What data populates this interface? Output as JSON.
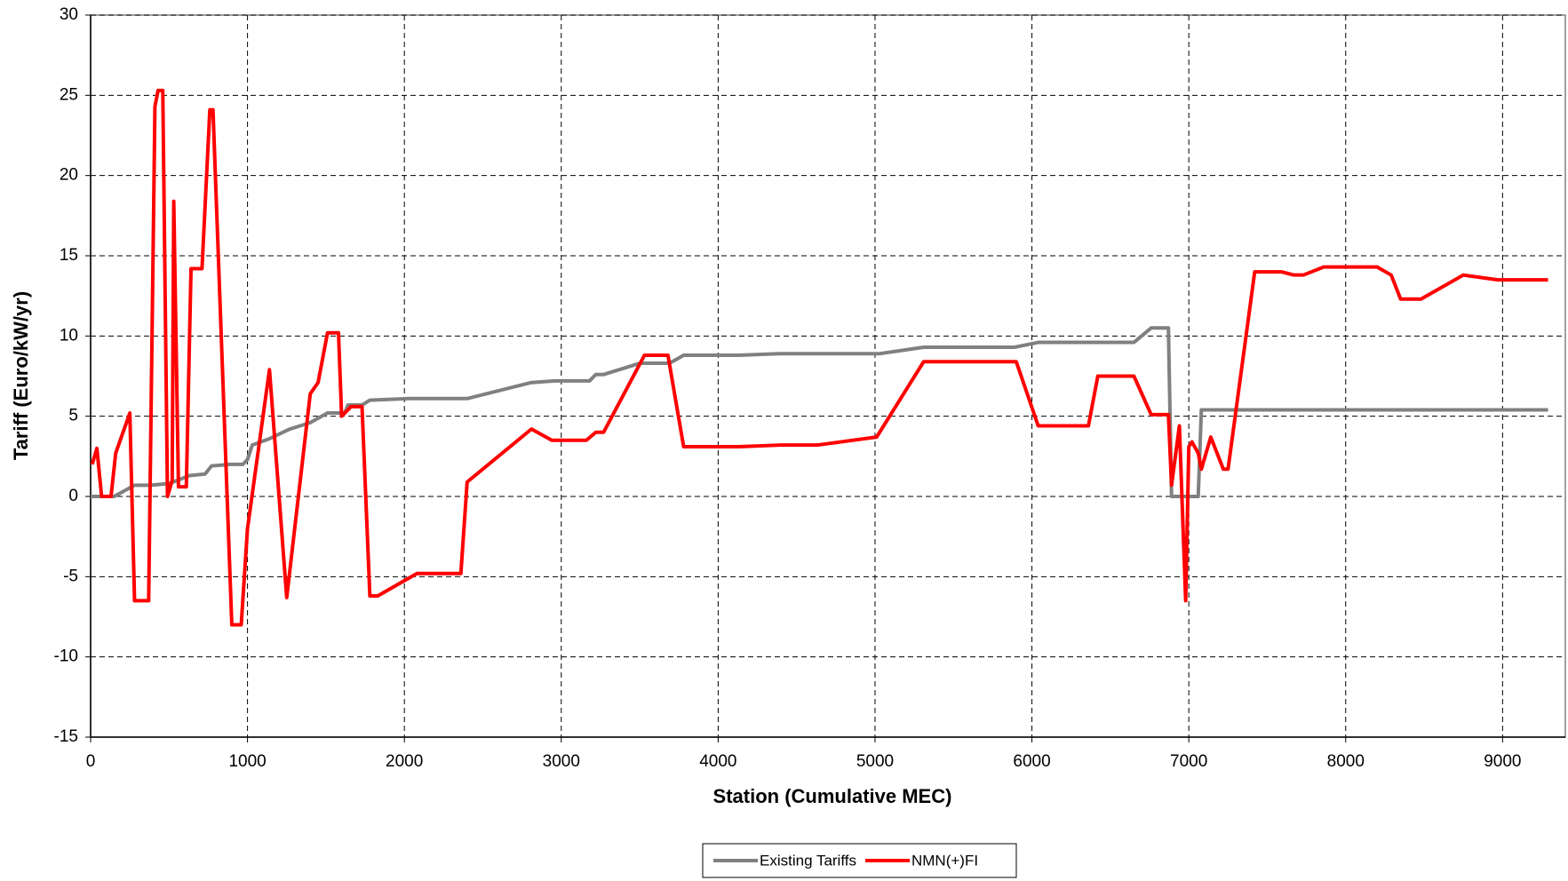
{
  "chart_data": {
    "type": "line",
    "x_label": "Station (Cumulative MEC)",
    "y_label": "Tariff (Euro/kW/yr)",
    "xlim": [
      0,
      9400
    ],
    "ylim": [
      -15,
      30
    ],
    "xticks": [
      0,
      1000,
      2000,
      3000,
      4000,
      5000,
      6000,
      7000,
      8000,
      9000
    ],
    "yticks": [
      -15,
      -10,
      -5,
      0,
      5,
      10,
      15,
      20,
      25,
      30
    ],
    "grid": true,
    "legend": "bottom",
    "series": [
      {
        "name": "Existing Tariffs",
        "color": "#808080",
        "x": [
          0,
          150,
          280,
          380,
          500,
          630,
          730,
          770,
          890,
          970,
          1000,
          1030,
          1140,
          1270,
          1400,
          1510,
          1620,
          1640,
          1730,
          1780,
          2030,
          2400,
          2810,
          2960,
          3180,
          3220,
          3270,
          3500,
          3690,
          3780,
          4130,
          4390,
          5030,
          5310,
          5890,
          6040,
          6650,
          6760,
          6870,
          6890,
          7060,
          7080,
          9290
        ],
        "values": [
          0,
          0,
          0.7,
          0.7,
          0.8,
          1.3,
          1.4,
          1.9,
          2.0,
          2.0,
          2.3,
          3.2,
          3.6,
          4.2,
          4.6,
          5.2,
          5.2,
          5.7,
          5.7,
          6.0,
          6.1,
          6.1,
          7.1,
          7.2,
          7.2,
          7.6,
          7.6,
          8.3,
          8.3,
          8.8,
          8.8,
          8.9,
          8.9,
          9.3,
          9.3,
          9.6,
          9.6,
          10.5,
          10.5,
          0,
          0,
          5.4,
          5.4
        ]
      },
      {
        "name": "NMN(+)FI",
        "color": "#ff0000",
        "x": [
          10,
          40,
          70,
          130,
          160,
          250,
          280,
          370,
          410,
          430,
          460,
          490,
          520,
          530,
          560,
          610,
          640,
          710,
          760,
          780,
          900,
          960,
          1000,
          1140,
          1250,
          1400,
          1450,
          1510,
          1580,
          1600,
          1660,
          1730,
          1780,
          1830,
          2080,
          2360,
          2400,
          2810,
          2940,
          3160,
          3220,
          3270,
          3530,
          3680,
          3780,
          4130,
          4390,
          4630,
          5010,
          5310,
          5900,
          6040,
          6360,
          6420,
          6650,
          6760,
          6870,
          6890,
          6940,
          6980,
          7000,
          7020,
          7060,
          7080,
          7140,
          7220,
          7250,
          7420,
          7590,
          7670,
          7730,
          7860,
          8200,
          8290,
          8350,
          8480,
          8750,
          8970,
          9290
        ],
        "values": [
          2.0,
          3.0,
          0,
          0,
          2.7,
          5.2,
          -6.5,
          -6.5,
          24.3,
          25.3,
          25.3,
          0,
          1.0,
          18.4,
          0.6,
          0.6,
          14.2,
          14.2,
          24.1,
          24.1,
          -8.0,
          -8.0,
          -2.0,
          7.9,
          -6.3,
          6.4,
          7.1,
          10.2,
          10.2,
          5.0,
          5.6,
          5.6,
          -6.2,
          -6.2,
          -4.8,
          -4.8,
          0.9,
          4.2,
          3.5,
          3.5,
          4.0,
          4.0,
          8.8,
          8.8,
          3.1,
          3.1,
          3.2,
          3.2,
          3.7,
          8.4,
          8.4,
          4.4,
          4.4,
          7.5,
          7.5,
          5.1,
          5.1,
          0.7,
          4.4,
          -6.5,
          3.1,
          3.4,
          2.7,
          1.7,
          3.7,
          1.7,
          1.7,
          14.0,
          14.0,
          13.8,
          13.8,
          14.3,
          14.3,
          13.8,
          12.3,
          12.3,
          13.8,
          13.5,
          13.5
        ]
      }
    ]
  }
}
